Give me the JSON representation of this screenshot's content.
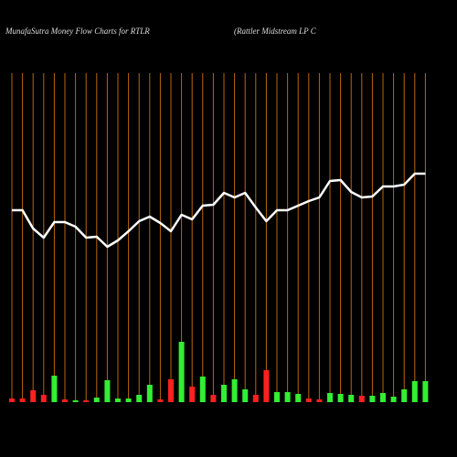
{
  "chart_data": {
    "type": "moneyflow",
    "title": "MunafaSutra  Money Flow  Charts for RTLR",
    "subtitle": "(Rattler Midstream LP C",
    "categories": [
      null,
      null,
      null,
      null,
      null,
      null,
      null,
      null,
      null,
      null,
      null,
      null,
      null,
      null,
      null,
      null,
      null,
      null,
      null,
      null,
      null,
      null,
      null,
      null,
      null,
      null,
      null,
      null,
      null,
      null,
      null,
      null,
      null,
      null,
      null,
      null,
      null,
      null,
      null,
      null
    ],
    "ylim": [
      0,
      360
    ],
    "series": [
      {
        "type": "line",
        "color": "#ffffff",
        "values": [
          210,
          210,
          190,
          180,
          197,
          197,
          192,
          180,
          181,
          170,
          177,
          187,
          198,
          203,
          196,
          187,
          205,
          200,
          215,
          216,
          229,
          224,
          229,
          213,
          198,
          210,
          210,
          215,
          220,
          224,
          242,
          243,
          230,
          224,
          225,
          236,
          236,
          238,
          250,
          250
        ]
      },
      {
        "type": "bar",
        "values": [
          4,
          4,
          13,
          8,
          29,
          3,
          2,
          2,
          5,
          24,
          4,
          4,
          8,
          19,
          3,
          25,
          66,
          17,
          28,
          8,
          19,
          25,
          14,
          8,
          35,
          11,
          11,
          9,
          4,
          3,
          10,
          9,
          8,
          7,
          7,
          10,
          6,
          14,
          23,
          23
        ],
        "colors": [
          "#ff2020",
          "#ff2020",
          "#ff2020",
          "#ff2020",
          "#33ee33",
          "#ff2020",
          "#33ee33",
          "#ff2020",
          "#33ee33",
          "#33ee33",
          "#33ee33",
          "#33ee33",
          "#33ee33",
          "#33ee33",
          "#ff2020",
          "#ff2020",
          "#33ee33",
          "#ff2020",
          "#33ee33",
          "#ff2020",
          "#33ee33",
          "#33ee33",
          "#33ee33",
          "#ff2020",
          "#ff2020",
          "#33ee33",
          "#33ee33",
          "#33ee33",
          "#ff2020",
          "#ff2020",
          "#33ee33",
          "#33ee33",
          "#33ee33",
          "#ff2020",
          "#33ee33",
          "#33ee33",
          "#33ee33",
          "#33ee33",
          "#33ee33",
          "#33ee33"
        ]
      }
    ],
    "grid_color": "#b8660b",
    "background": "#000000"
  }
}
